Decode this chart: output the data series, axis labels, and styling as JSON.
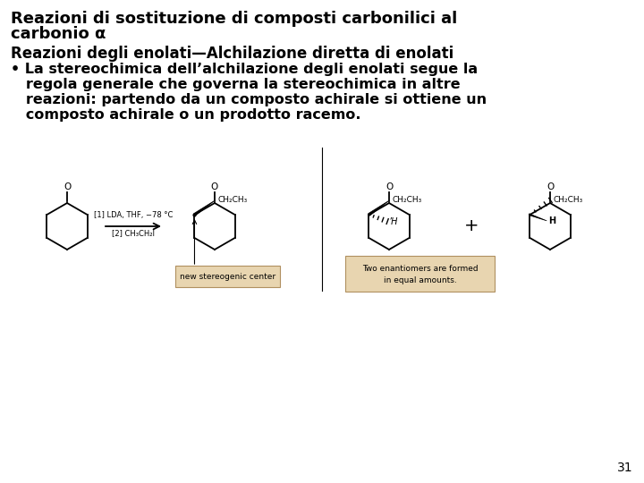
{
  "title_line1": "Reazioni di sostituzione di composti carbonilici al",
  "title_line2": "carbonio α",
  "subtitle": "Reazioni degli enolati—Alchilazione diretta di enolati",
  "bullet_lines": [
    "• La stereochimica dell’alchilazione degli enolati segue la",
    "   regola generale che governa la stereochimica in altre",
    "   reazioni: partendo da un composto achirale si ottiene un",
    "   composto achirale o un prodotto racemo."
  ],
  "page_number": "31",
  "background_color": "#ffffff",
  "text_color": "#000000",
  "title_fontsize": 13.0,
  "subtitle_fontsize": 12.0,
  "body_fontsize": 11.5,
  "page_num_fontsize": 10
}
